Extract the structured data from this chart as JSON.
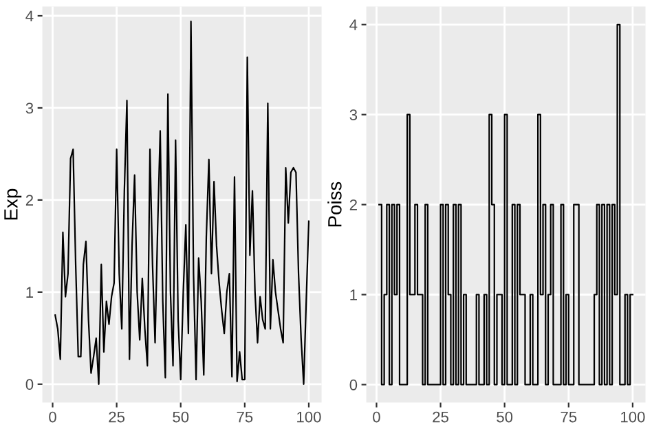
{
  "chart_data": [
    {
      "type": "line",
      "ylabel": "Exp",
      "x": [
        1,
        2,
        3,
        4,
        5,
        6,
        7,
        8,
        9,
        10,
        11,
        12,
        13,
        14,
        15,
        16,
        17,
        18,
        19,
        20,
        21,
        22,
        23,
        24,
        25,
        26,
        27,
        28,
        29,
        30,
        31,
        32,
        33,
        34,
        35,
        36,
        37,
        38,
        39,
        40,
        41,
        42,
        43,
        44,
        45,
        46,
        47,
        48,
        49,
        50,
        51,
        52,
        53,
        54,
        55,
        56,
        57,
        58,
        59,
        60,
        61,
        62,
        63,
        64,
        65,
        66,
        67,
        68,
        69,
        70,
        71,
        72,
        73,
        74,
        75,
        76,
        77,
        78,
        79,
        80,
        81,
        82,
        83,
        84,
        85,
        86,
        87,
        88,
        89,
        90,
        91,
        92,
        93,
        94,
        95,
        96,
        97,
        98,
        99,
        100
      ],
      "series": [
        {
          "color": "#000000",
          "values": [
            0.75,
            0.6,
            0.27,
            1.65,
            0.95,
            1.2,
            2.45,
            2.55,
            1.3,
            0.3,
            0.3,
            1.3,
            1.55,
            0.7,
            0.12,
            0.3,
            0.5,
            0.0,
            1.3,
            0.35,
            0.9,
            0.65,
            0.95,
            1.1,
            2.55,
            1.2,
            0.6,
            2.1,
            3.08,
            0.27,
            1.5,
            2.27,
            1.0,
            0.48,
            1.15,
            0.6,
            0.2,
            2.55,
            1.3,
            0.45,
            1.7,
            2.75,
            0.9,
            0.07,
            3.15,
            1.0,
            0.2,
            2.65,
            0.7,
            0.05,
            1.0,
            1.73,
            0.55,
            3.94,
            1.2,
            0.05,
            1.37,
            0.9,
            0.1,
            1.6,
            2.44,
            1.2,
            2.2,
            1.5,
            1.1,
            0.8,
            0.55,
            1.0,
            1.2,
            0.08,
            2.25,
            0.03,
            0.35,
            0.05,
            0.05,
            3.55,
            1.4,
            2.1,
            1.0,
            0.45,
            0.95,
            0.7,
            0.6,
            3.05,
            0.6,
            1.35,
            1.0,
            0.8,
            0.6,
            0.45,
            2.35,
            1.75,
            2.3,
            2.35,
            2.3,
            1.2,
            0.5,
            0.0,
            0.9,
            1.77
          ]
        }
      ],
      "xlim": [
        -4,
        105
      ],
      "xticks": [
        0,
        25,
        50,
        75,
        100
      ],
      "ylim": [
        -0.2,
        4.1
      ],
      "yticks": [
        0,
        1,
        2,
        3,
        4
      ],
      "grid": true,
      "line_style": "solid"
    },
    {
      "type": "step",
      "ylabel": "Poiss",
      "x": [
        1,
        2,
        3,
        4,
        5,
        6,
        7,
        8,
        9,
        10,
        11,
        12,
        13,
        14,
        15,
        16,
        17,
        18,
        19,
        20,
        21,
        22,
        23,
        24,
        25,
        26,
        27,
        28,
        29,
        30,
        31,
        32,
        33,
        34,
        35,
        36,
        37,
        38,
        39,
        40,
        41,
        42,
        43,
        44,
        45,
        46,
        47,
        48,
        49,
        50,
        51,
        52,
        53,
        54,
        55,
        56,
        57,
        58,
        59,
        60,
        61,
        62,
        63,
        64,
        65,
        66,
        67,
        68,
        69,
        70,
        71,
        72,
        73,
        74,
        75,
        76,
        77,
        78,
        79,
        80,
        81,
        82,
        83,
        84,
        85,
        86,
        87,
        88,
        89,
        90,
        91,
        92,
        93,
        94,
        95,
        96,
        97,
        98,
        99,
        100
      ],
      "series": [
        {
          "color": "#000000",
          "values": [
            2,
            0,
            1,
            2,
            0,
            2,
            1,
            2,
            0,
            0,
            0,
            3,
            1,
            1,
            2,
            1,
            1,
            0,
            2,
            0,
            0,
            0,
            0,
            0,
            2,
            0,
            2,
            1,
            0,
            2,
            0,
            2,
            0,
            1,
            0,
            0,
            0,
            0,
            1,
            0,
            0,
            1,
            0,
            3,
            2,
            0,
            1,
            1,
            0,
            3,
            0,
            0,
            2,
            0,
            2,
            1,
            1,
            0,
            0,
            1,
            0,
            0,
            3,
            1,
            2,
            0,
            1,
            2,
            0,
            0,
            0,
            2,
            0,
            1,
            0,
            0,
            2,
            2,
            0,
            0,
            0,
            0,
            0,
            0,
            1,
            2,
            0,
            2,
            0,
            2,
            0,
            2,
            1,
            4,
            0,
            0,
            1,
            0,
            1,
            1
          ]
        }
      ],
      "xlim": [
        -4,
        105
      ],
      "xticks": [
        0,
        25,
        50,
        75,
        100
      ],
      "ylim": [
        -0.2,
        4.2
      ],
      "yticks": [
        0,
        1,
        2,
        3,
        4
      ],
      "grid": true,
      "line_style": "solid"
    }
  ]
}
